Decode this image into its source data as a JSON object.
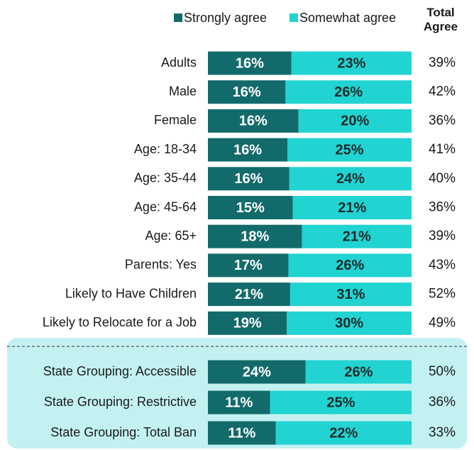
{
  "chart_data": {
    "type": "bar",
    "orientation": "horizontal",
    "stacked": "percent",
    "categories": [
      "Adults",
      "Male",
      "Female",
      "Age: 18-34",
      "Age: 35-44",
      "Age: 45-64",
      "Age: 65+",
      "Parents: Yes",
      "Likely to Have Children",
      "Likely to Relocate for a Job",
      "State Grouping: Accessible",
      "State Grouping: Restrictive",
      "State Grouping: Total Ban"
    ],
    "series": [
      {
        "name": "Strongly agree",
        "color": "#126b6a",
        "values": [
          16,
          16,
          16,
          16,
          16,
          15,
          18,
          17,
          21,
          19,
          24,
          11,
          11
        ],
        "value_labels": [
          "16%",
          "16%",
          "16%",
          "16%",
          "16%",
          "15%",
          "18%",
          "17%",
          "21%",
          "19%",
          "24%",
          "11%",
          "11%"
        ]
      },
      {
        "name": "Somewhat agree",
        "color": "#21d3d1",
        "values": [
          23,
          26,
          20,
          25,
          24,
          21,
          21,
          26,
          31,
          30,
          26,
          25,
          22
        ],
        "value_labels": [
          "23%",
          "26%",
          "20%",
          "25%",
          "24%",
          "21%",
          "21%",
          "26%",
          "31%",
          "30%",
          "26%",
          "25%",
          "22%"
        ]
      }
    ],
    "totals": {
      "title": "Total Agree",
      "values": [
        39,
        42,
        36,
        41,
        40,
        36,
        39,
        43,
        52,
        49,
        50,
        36,
        33
      ],
      "value_labels": [
        "39%",
        "42%",
        "36%",
        "41%",
        "40%",
        "36%",
        "39%",
        "43%",
        "52%",
        "49%",
        "50%",
        "36%",
        "33%"
      ]
    }
  }
}
